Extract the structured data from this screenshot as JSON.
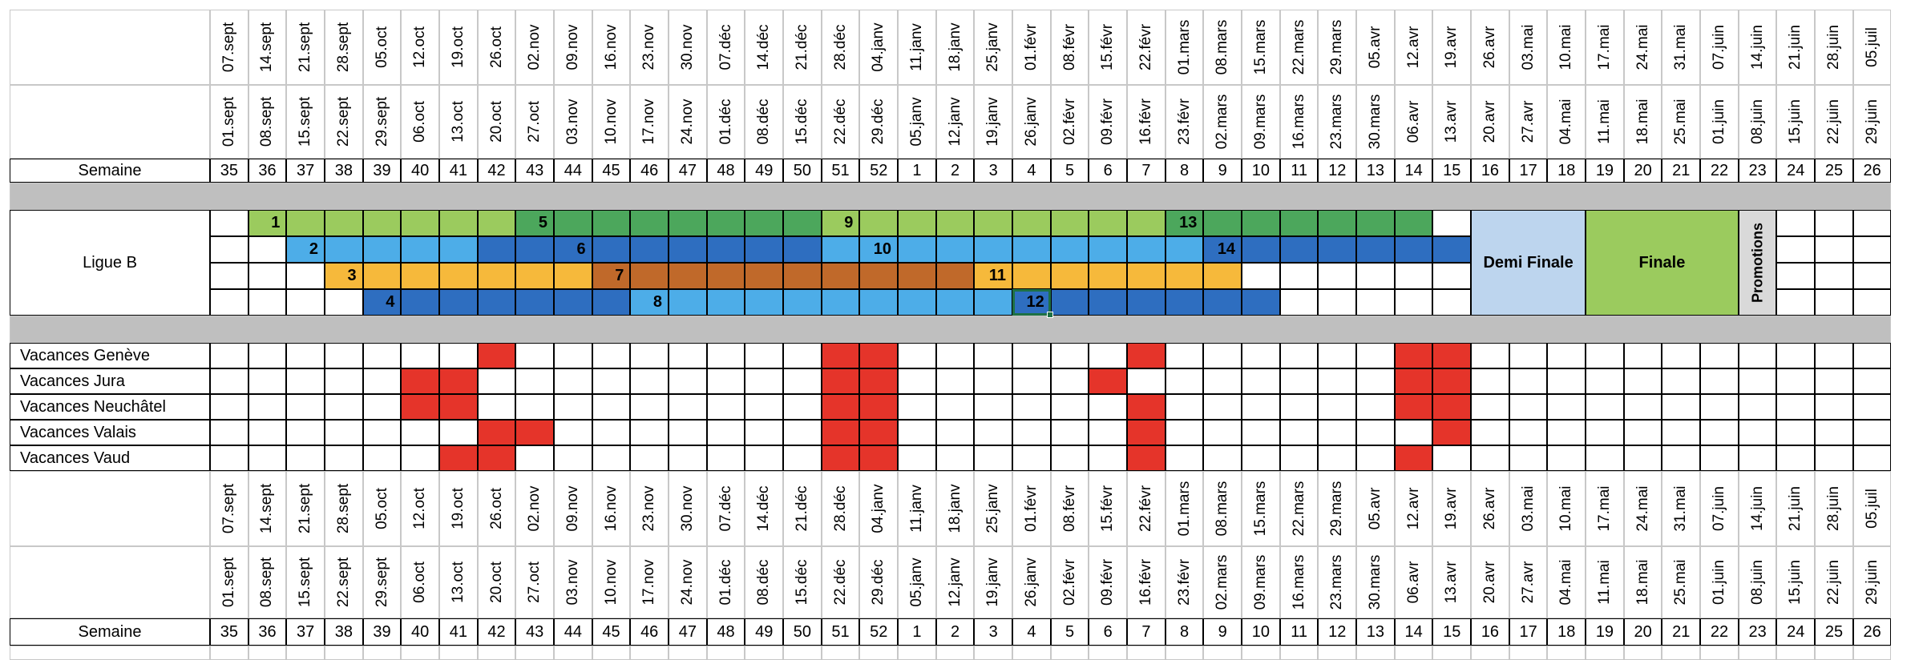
{
  "sheet": {
    "dates_row_end": [
      "07.sept",
      "14.sept",
      "21.sept",
      "28.sept",
      "05.oct",
      "12.oct",
      "19.oct",
      "26.oct",
      "02.nov",
      "09.nov",
      "16.nov",
      "23.nov",
      "30.nov",
      "07.déc",
      "14.déc",
      "21.déc",
      "28.déc",
      "04.janv",
      "11.janv",
      "18.janv",
      "25.janv",
      "01.févr",
      "08.févr",
      "15.févr",
      "22.févr",
      "01.mars",
      "08.mars",
      "15.mars",
      "22.mars",
      "29.mars",
      "05.avr",
      "12.avr",
      "19.avr",
      "26.avr",
      "03.mai",
      "10.mai",
      "17.mai",
      "24.mai",
      "31.mai",
      "07.juin",
      "14.juin",
      "21.juin",
      "28.juin",
      "05.juil"
    ],
    "dates_row_start": [
      "01.sept",
      "08.sept",
      "15.sept",
      "22.sept",
      "29.sept",
      "06.oct",
      "13.oct",
      "20.oct",
      "27.oct",
      "03.nov",
      "10.nov",
      "17.nov",
      "24.nov",
      "01.déc",
      "08.déc",
      "15.déc",
      "22.déc",
      "29.déc",
      "05.janv",
      "12.janv",
      "19.janv",
      "26.janv",
      "02.févr",
      "09.févr",
      "16.févr",
      "23.févr",
      "02.mars",
      "09.mars",
      "16.mars",
      "23.mars",
      "30.mars",
      "06.avr",
      "13.avr",
      "20.avr",
      "27.avr",
      "04.mai",
      "11.mai",
      "18.mai",
      "25.mai",
      "01.juin",
      "08.juin",
      "15.juin",
      "22.juin",
      "29.juin"
    ],
    "weeks": [
      "35",
      "36",
      "37",
      "38",
      "39",
      "40",
      "41",
      "42",
      "43",
      "44",
      "45",
      "46",
      "47",
      "48",
      "49",
      "50",
      "51",
      "52",
      "1",
      "2",
      "3",
      "4",
      "5",
      "6",
      "7",
      "8",
      "9",
      "10",
      "11",
      "12",
      "13",
      "14",
      "15",
      "16",
      "17",
      "18",
      "19",
      "20",
      "21",
      "22",
      "23",
      "24",
      "25",
      "26"
    ],
    "semaine_label": "Semaine",
    "ligue_label": "Ligue B",
    "demi_finale": "Demi Finale",
    "finale": "Finale",
    "promotions": "Promotions",
    "rounds": [
      "1",
      "2",
      "3",
      "4",
      "5",
      "6",
      "7",
      "8",
      "9",
      "10",
      "11",
      "12",
      "13",
      "14"
    ],
    "vacances": [
      "Vacances Genève",
      "Vacances Jura",
      "Vacances Neuchâtel",
      "Vacances Valais",
      "Vacances Vaud"
    ],
    "colors": {
      "light_green": "#9BCB5E",
      "dark_green": "#4CA75C",
      "light_blue": "#4DADE8",
      "dark_blue": "#2E6EC0",
      "yellow": "#F6B93B",
      "brown": "#C0692A",
      "red": "#E5342A",
      "pale_blue": "#BDD5EE",
      "separator_grey": "#BFBFBF",
      "promo_grey": "#D9D9D9",
      "selection": "#1E7145"
    }
  }
}
